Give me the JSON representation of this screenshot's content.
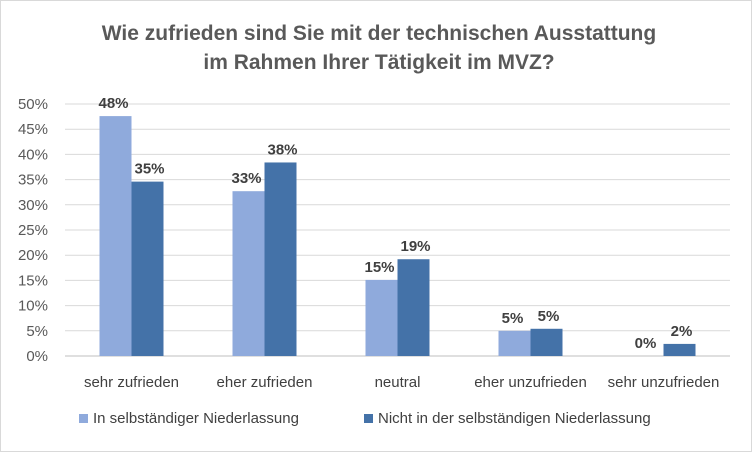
{
  "chart_data": {
    "type": "bar",
    "title_lines": [
      "Wie zufrieden sind Sie mit der technischen Ausstattung",
      "im Rahmen Ihrer Tätigkeit im MVZ?"
    ],
    "categories": [
      "sehr zufrieden",
      "eher zufrieden",
      "neutral",
      "eher unzufrieden",
      "sehr unzufrieden"
    ],
    "series": [
      {
        "name": "In selbständiger Niederlassung",
        "color": "#8faadc",
        "values": [
          47.6,
          32.7,
          15.1,
          5.0,
          0.0
        ],
        "labels": [
          "48%",
          "33%",
          "15%",
          "5%",
          "0%"
        ]
      },
      {
        "name": "Nicht in der selbständigen Niederlassung",
        "color": "#4472a8",
        "values": [
          34.6,
          38.4,
          19.2,
          5.4,
          2.4
        ],
        "labels": [
          "35%",
          "38%",
          "19%",
          "5%",
          "2%"
        ]
      }
    ],
    "ylim": [
      0,
      50
    ],
    "yticks": [
      "0%",
      "5%",
      "10%",
      "15%",
      "20%",
      "25%",
      "30%",
      "35%",
      "40%",
      "45%",
      "50%"
    ],
    "grid": true,
    "legend_position": "bottom"
  }
}
